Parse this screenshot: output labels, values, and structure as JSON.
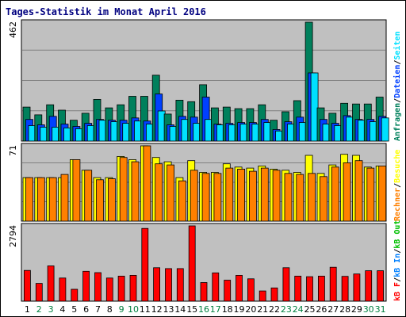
{
  "title": "Tages-Statistik im Monat April 2016",
  "colors": {
    "frame_bg": "#ffffff",
    "plot_bg": "#c0c0c0",
    "grid": "#808080",
    "title": "#000080",
    "weekday": "#000000",
    "weekend": "#008040",
    "anfragen": "#00805c",
    "dateien": "#0040ff",
    "seiten": "#00e0ff",
    "besuche": "#ffff00",
    "rechner": "#ff8000",
    "kbf": "#ff0000",
    "kbin": "#0080ff",
    "kbout": "#00c000",
    "sep": "#000000"
  },
  "chart_data": {
    "type": "bar",
    "title": "Tages-Statistik im Monat April 2016",
    "categories": [
      "1",
      "2",
      "3",
      "4",
      "5",
      "6",
      "7",
      "8",
      "9",
      "10",
      "11",
      "12",
      "13",
      "14",
      "15",
      "16",
      "17",
      "18",
      "19",
      "20",
      "21",
      "22",
      "23",
      "24",
      "25",
      "26",
      "27",
      "28",
      "29",
      "30",
      "31"
    ],
    "weekend_days": [
      "2",
      "3",
      "9",
      "10",
      "16",
      "17",
      "23",
      "24",
      "30",
      "31"
    ],
    "panels": [
      {
        "id": "requests",
        "max_label": "462",
        "ymax": 462,
        "grid": true,
        "legend": [
          {
            "text": "Anfragen",
            "color": "#00805c"
          },
          {
            "text": "/",
            "color": "#000000"
          },
          {
            "text": "Dateien",
            "color": "#0040ff"
          },
          {
            "text": "/",
            "color": "#000000"
          },
          {
            "text": "Seiten",
            "color": "#00e0ff"
          }
        ],
        "series": [
          {
            "name": "Anfragen",
            "color": "#00805c",
            "values": [
              132,
              102,
              141,
              120,
              81,
              108,
              162,
              129,
              141,
              174,
              174,
              256,
              105,
              159,
              153,
              219,
              129,
              132,
              126,
              126,
              141,
              81,
              114,
              157,
              462,
              129,
              108,
              147,
              144,
              144,
              171
            ]
          },
          {
            "name": "Dateien",
            "color": "#0040ff",
            "values": [
              84,
              63,
              96,
              66,
              57,
              69,
              84,
              81,
              81,
              90,
              78,
              183,
              63,
              96,
              93,
              171,
              66,
              69,
              72,
              72,
              84,
              45,
              75,
              93,
              265,
              84,
              69,
              99,
              84,
              84,
              96
            ]
          },
          {
            "name": "Seiten",
            "color": "#00e0ff",
            "values": [
              60,
              54,
              54,
              51,
              48,
              60,
              81,
              75,
              69,
              78,
              66,
              117,
              57,
              84,
              69,
              84,
              63,
              63,
              66,
              66,
              72,
              39,
              66,
              72,
              265,
              66,
              60,
              93,
              81,
              75,
              90
            ]
          }
        ]
      },
      {
        "id": "visits",
        "max_label": "71",
        "ymax": 71,
        "grid": true,
        "legend": [
          {
            "text": "Rechner",
            "color": "#ff8000"
          },
          {
            "text": "/",
            "color": "#000000"
          },
          {
            "text": "Besuche",
            "color": "#ffff00"
          }
        ],
        "series": [
          {
            "name": "Besuche",
            "color": "#ffff00",
            "values": [
              41,
              41,
              41,
              41,
              58,
              48,
              41,
              41,
              61,
              58,
              71,
              60,
              56,
              41,
              57,
              46,
              46,
              54,
              51,
              50,
              52,
              49,
              48,
              46,
              62,
              45,
              53,
              63,
              62,
              51,
              52
            ]
          },
          {
            "name": "Rechner",
            "color": "#ff8000",
            "values": [
              41,
              41,
              41,
              44,
              58,
              48,
              39,
              40,
              60,
              56,
              71,
              54,
              53,
              38,
              48,
              45,
              45,
              50,
              49,
              47,
              50,
              48,
              45,
              44,
              45,
              42,
              51,
              55,
              57,
              50,
              52
            ]
          }
        ]
      },
      {
        "id": "traffic",
        "max_label": "2794",
        "ymax": 2794,
        "grid": false,
        "legend": [
          {
            "text": "kB F",
            "color": "#ff0000"
          },
          {
            "text": "/",
            "color": "#000000"
          },
          {
            "text": "kB In",
            "color": "#0080ff"
          },
          {
            "text": "/",
            "color": "#000000"
          },
          {
            "text": "kB Out",
            "color": "#00c000"
          }
        ],
        "series": [
          {
            "name": "kB F",
            "color": "#ff0000",
            "values": [
              1140,
              660,
              1310,
              860,
              440,
              1110,
              1060,
              860,
              930,
              960,
              2700,
              1240,
              1210,
              1210,
              2794,
              690,
              1050,
              780,
              960,
              830,
              380,
              490,
              1240,
              930,
              910,
              930,
              1260,
              920,
              1010,
              1130,
              1130
            ]
          }
        ]
      }
    ]
  }
}
